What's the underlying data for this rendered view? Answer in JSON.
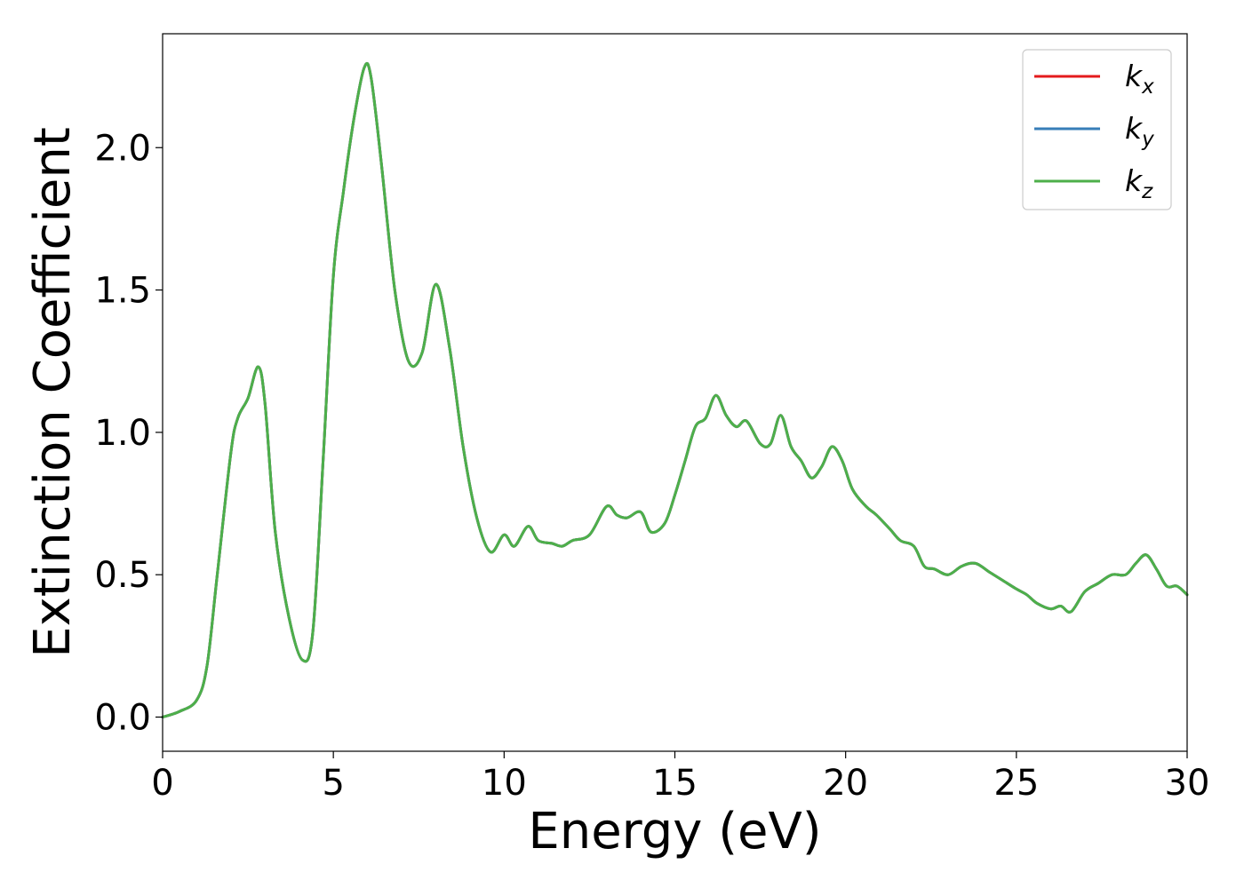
{
  "chart_data": {
    "type": "line",
    "title": "",
    "xlabel": "Energy (eV)",
    "ylabel": "Extinction Coefficient",
    "xlim": [
      0,
      30
    ],
    "ylim": [
      -0.12,
      2.4
    ],
    "xticks": [
      0,
      5,
      10,
      15,
      20,
      25,
      30
    ],
    "xtick_labels": [
      "0",
      "5",
      "10",
      "15",
      "20",
      "25",
      "30"
    ],
    "yticks": [
      0.0,
      0.5,
      1.0,
      1.5,
      2.0
    ],
    "ytick_labels": [
      "0.0",
      "0.5",
      "1.0",
      "1.5",
      "2.0"
    ],
    "grid": false,
    "legend": {
      "placement": "top-right"
    },
    "series": [
      {
        "name": "kx",
        "name_base": "k",
        "name_sub": "x",
        "color": "#e41a1c",
        "x": [
          0,
          0.5,
          1.0,
          1.3,
          1.6,
          2.0,
          2.2,
          2.5,
          2.8,
          3.0,
          3.3,
          3.7,
          4.1,
          4.4,
          4.7,
          5.0,
          5.3,
          5.6,
          5.9,
          6.1,
          6.4,
          6.8,
          7.2,
          7.6,
          8.0,
          8.4,
          8.8,
          9.2,
          9.6,
          10.0,
          10.3,
          10.7,
          11.0,
          11.4,
          11.7,
          12.0,
          12.5,
          13.0,
          13.3,
          13.6,
          14.0,
          14.3,
          14.7,
          15.0,
          15.3,
          15.6,
          15.9,
          16.2,
          16.5,
          16.8,
          17.1,
          17.5,
          17.8,
          18.1,
          18.4,
          18.7,
          19.0,
          19.3,
          19.6,
          19.9,
          20.2,
          20.6,
          20.9,
          21.3,
          21.6,
          22.0,
          22.3,
          22.6,
          23.0,
          23.4,
          23.8,
          24.2,
          24.6,
          25.0,
          25.3,
          25.6,
          26.0,
          26.3,
          26.6,
          27.0,
          27.4,
          27.8,
          28.2,
          28.5,
          28.8,
          29.1,
          29.4,
          29.7,
          30.0
        ],
        "y": [
          0.0,
          0.02,
          0.06,
          0.18,
          0.5,
          0.93,
          1.05,
          1.12,
          1.23,
          1.1,
          0.65,
          0.35,
          0.2,
          0.3,
          0.9,
          1.55,
          1.85,
          2.1,
          2.28,
          2.25,
          1.95,
          1.5,
          1.25,
          1.28,
          1.52,
          1.3,
          0.95,
          0.7,
          0.58,
          0.64,
          0.6,
          0.67,
          0.62,
          0.61,
          0.6,
          0.62,
          0.64,
          0.74,
          0.71,
          0.7,
          0.72,
          0.65,
          0.68,
          0.78,
          0.9,
          1.02,
          1.05,
          1.13,
          1.06,
          1.02,
          1.04,
          0.96,
          0.96,
          1.06,
          0.95,
          0.9,
          0.84,
          0.88,
          0.95,
          0.9,
          0.8,
          0.74,
          0.71,
          0.66,
          0.62,
          0.6,
          0.53,
          0.52,
          0.5,
          0.53,
          0.54,
          0.51,
          0.48,
          0.45,
          0.43,
          0.4,
          0.38,
          0.39,
          0.37,
          0.44,
          0.47,
          0.5,
          0.5,
          0.54,
          0.57,
          0.52,
          0.46,
          0.46,
          0.43
        ]
      },
      {
        "name": "ky",
        "name_base": "k",
        "name_sub": "y",
        "color": "#377eb8",
        "x": [
          0,
          0.5,
          1.0,
          1.3,
          1.6,
          2.0,
          2.2,
          2.5,
          2.8,
          3.0,
          3.3,
          3.7,
          4.1,
          4.4,
          4.7,
          5.0,
          5.3,
          5.6,
          5.9,
          6.1,
          6.4,
          6.8,
          7.2,
          7.6,
          8.0,
          8.4,
          8.8,
          9.2,
          9.6,
          10.0,
          10.3,
          10.7,
          11.0,
          11.4,
          11.7,
          12.0,
          12.5,
          13.0,
          13.3,
          13.6,
          14.0,
          14.3,
          14.7,
          15.0,
          15.3,
          15.6,
          15.9,
          16.2,
          16.5,
          16.8,
          17.1,
          17.5,
          17.8,
          18.1,
          18.4,
          18.7,
          19.0,
          19.3,
          19.6,
          19.9,
          20.2,
          20.6,
          20.9,
          21.3,
          21.6,
          22.0,
          22.3,
          22.6,
          23.0,
          23.4,
          23.8,
          24.2,
          24.6,
          25.0,
          25.3,
          25.6,
          26.0,
          26.3,
          26.6,
          27.0,
          27.4,
          27.8,
          28.2,
          28.5,
          28.8,
          29.1,
          29.4,
          29.7,
          30.0
        ],
        "y": [
          0.0,
          0.02,
          0.06,
          0.18,
          0.5,
          0.93,
          1.05,
          1.12,
          1.23,
          1.1,
          0.65,
          0.35,
          0.2,
          0.3,
          0.9,
          1.55,
          1.85,
          2.1,
          2.28,
          2.25,
          1.95,
          1.5,
          1.25,
          1.28,
          1.52,
          1.3,
          0.95,
          0.7,
          0.58,
          0.64,
          0.6,
          0.67,
          0.62,
          0.61,
          0.6,
          0.62,
          0.64,
          0.74,
          0.71,
          0.7,
          0.72,
          0.65,
          0.68,
          0.78,
          0.9,
          1.02,
          1.05,
          1.13,
          1.06,
          1.02,
          1.04,
          0.96,
          0.96,
          1.06,
          0.95,
          0.9,
          0.84,
          0.88,
          0.95,
          0.9,
          0.8,
          0.74,
          0.71,
          0.66,
          0.62,
          0.6,
          0.53,
          0.52,
          0.5,
          0.53,
          0.54,
          0.51,
          0.48,
          0.45,
          0.43,
          0.4,
          0.38,
          0.39,
          0.37,
          0.44,
          0.47,
          0.5,
          0.5,
          0.54,
          0.57,
          0.52,
          0.46,
          0.46,
          0.43
        ]
      },
      {
        "name": "kz",
        "name_base": "k",
        "name_sub": "z",
        "color": "#4daf4a",
        "x": [
          0,
          0.5,
          1.0,
          1.3,
          1.6,
          2.0,
          2.2,
          2.5,
          2.8,
          3.0,
          3.3,
          3.7,
          4.1,
          4.4,
          4.7,
          5.0,
          5.3,
          5.6,
          5.9,
          6.1,
          6.4,
          6.8,
          7.2,
          7.6,
          8.0,
          8.4,
          8.8,
          9.2,
          9.6,
          10.0,
          10.3,
          10.7,
          11.0,
          11.4,
          11.7,
          12.0,
          12.5,
          13.0,
          13.3,
          13.6,
          14.0,
          14.3,
          14.7,
          15.0,
          15.3,
          15.6,
          15.9,
          16.2,
          16.5,
          16.8,
          17.1,
          17.5,
          17.8,
          18.1,
          18.4,
          18.7,
          19.0,
          19.3,
          19.6,
          19.9,
          20.2,
          20.6,
          20.9,
          21.3,
          21.6,
          22.0,
          22.3,
          22.6,
          23.0,
          23.4,
          23.8,
          24.2,
          24.6,
          25.0,
          25.3,
          25.6,
          26.0,
          26.3,
          26.6,
          27.0,
          27.4,
          27.8,
          28.2,
          28.5,
          28.8,
          29.1,
          29.4,
          29.7,
          30.0
        ],
        "y": [
          0.0,
          0.02,
          0.06,
          0.18,
          0.5,
          0.93,
          1.05,
          1.12,
          1.23,
          1.1,
          0.65,
          0.35,
          0.2,
          0.3,
          0.9,
          1.55,
          1.85,
          2.1,
          2.28,
          2.25,
          1.95,
          1.5,
          1.25,
          1.28,
          1.52,
          1.3,
          0.95,
          0.7,
          0.58,
          0.64,
          0.6,
          0.67,
          0.62,
          0.61,
          0.6,
          0.62,
          0.64,
          0.74,
          0.71,
          0.7,
          0.72,
          0.65,
          0.68,
          0.78,
          0.9,
          1.02,
          1.05,
          1.13,
          1.06,
          1.02,
          1.04,
          0.96,
          0.96,
          1.06,
          0.95,
          0.9,
          0.84,
          0.88,
          0.95,
          0.9,
          0.8,
          0.74,
          0.71,
          0.66,
          0.62,
          0.6,
          0.53,
          0.52,
          0.5,
          0.53,
          0.54,
          0.51,
          0.48,
          0.45,
          0.43,
          0.4,
          0.38,
          0.39,
          0.37,
          0.44,
          0.47,
          0.5,
          0.5,
          0.54,
          0.57,
          0.52,
          0.46,
          0.46,
          0.43
        ]
      }
    ]
  }
}
